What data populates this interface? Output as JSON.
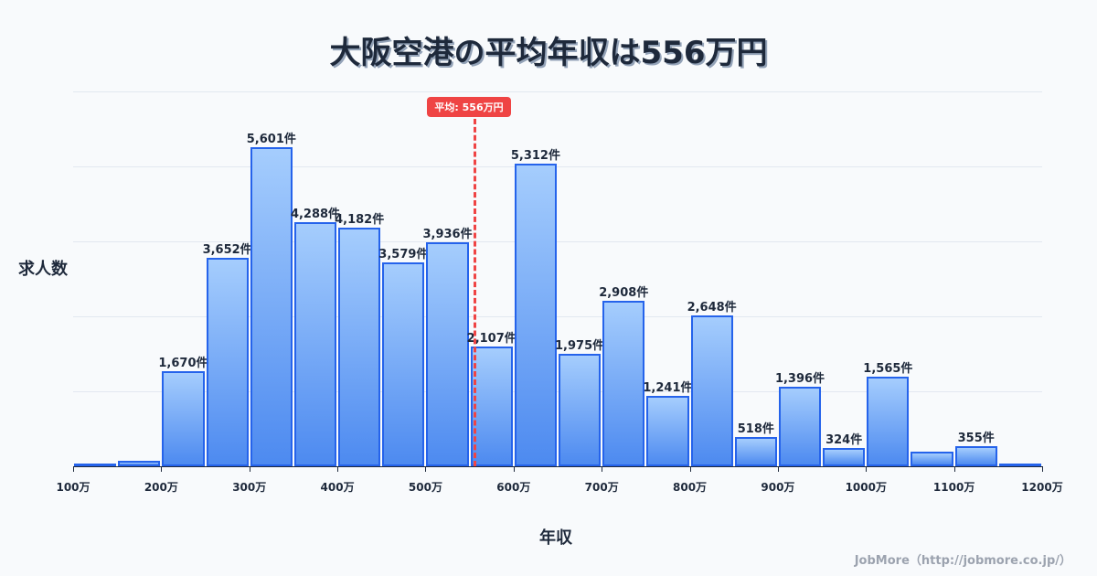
{
  "title": "大阪空港の平均年収は556万円",
  "footer": "JobMore（http://jobmore.co.jp/）",
  "chart_data": {
    "type": "bar",
    "title": "大阪空港の平均年収は556万円",
    "xlabel": "年収",
    "ylabel": "求人数",
    "x_ticks": [
      "100万",
      "200万",
      "300万",
      "400万",
      "500万",
      "600万",
      "700万",
      "800万",
      "900万",
      "1000万",
      "1100万",
      "1200万"
    ],
    "x_range": [
      100,
      1200
    ],
    "bin_width": 50,
    "grid": true,
    "legend": null,
    "mean_marker": {
      "value": 556,
      "label": "平均: 556万円",
      "color": "#ef4444"
    },
    "bar_color": "#3b82f6",
    "bar_border_color": "#2563eb",
    "bins": [
      {
        "start": 100,
        "end": 150,
        "value": 20,
        "label": ""
      },
      {
        "start": 150,
        "end": 200,
        "value": 90,
        "label": ""
      },
      {
        "start": 200,
        "end": 250,
        "value": 1670,
        "label": "1,670件"
      },
      {
        "start": 250,
        "end": 300,
        "value": 3652,
        "label": "3,652件"
      },
      {
        "start": 300,
        "end": 350,
        "value": 5601,
        "label": "5,601件"
      },
      {
        "start": 350,
        "end": 400,
        "value": 4288,
        "label": "4,288件"
      },
      {
        "start": 400,
        "end": 450,
        "value": 4182,
        "label": "4,182件"
      },
      {
        "start": 450,
        "end": 500,
        "value": 3579,
        "label": "3,579件"
      },
      {
        "start": 500,
        "end": 550,
        "value": 3936,
        "label": "3,936件"
      },
      {
        "start": 550,
        "end": 600,
        "value": 2107,
        "label": "2,107件"
      },
      {
        "start": 600,
        "end": 650,
        "value": 5312,
        "label": "5,312件"
      },
      {
        "start": 650,
        "end": 700,
        "value": 1975,
        "label": "1,975件"
      },
      {
        "start": 700,
        "end": 750,
        "value": 2908,
        "label": "2,908件"
      },
      {
        "start": 750,
        "end": 800,
        "value": 1241,
        "label": "1,241件"
      },
      {
        "start": 800,
        "end": 850,
        "value": 2648,
        "label": "2,648件"
      },
      {
        "start": 850,
        "end": 900,
        "value": 518,
        "label": "518件"
      },
      {
        "start": 900,
        "end": 950,
        "value": 1396,
        "label": "1,396件"
      },
      {
        "start": 950,
        "end": 1000,
        "value": 324,
        "label": "324件"
      },
      {
        "start": 1000,
        "end": 1050,
        "value": 1565,
        "label": "1,565件"
      },
      {
        "start": 1050,
        "end": 1100,
        "value": 250,
        "label": ""
      },
      {
        "start": 1100,
        "end": 1150,
        "value": 355,
        "label": "355件"
      },
      {
        "start": 1150,
        "end": 1200,
        "value": 40,
        "label": ""
      }
    ]
  }
}
